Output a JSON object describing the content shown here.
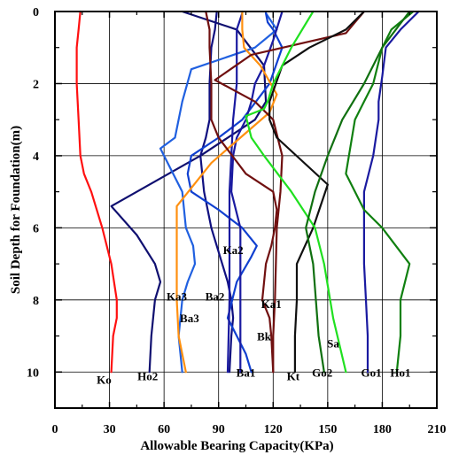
{
  "chart_data": {
    "type": "line",
    "title": "",
    "xlabel": "Allowable Bearing Capacity(KPa)",
    "ylabel": "Soil Depth for Foundation(m)",
    "xlim": [
      0,
      210
    ],
    "ylim": [
      0,
      11
    ],
    "y_inverted": true,
    "x_ticks": [
      "0",
      "30",
      "60",
      "90",
      "120",
      "150",
      "180",
      "210"
    ],
    "y_ticks": [
      "0",
      "2",
      "4",
      "6",
      "8",
      "10"
    ],
    "grid": true,
    "legend": "none",
    "series": [
      {
        "name": "Ko",
        "color": "#ff1010",
        "label_pos": [
          27,
          10.2
        ],
        "x": [
          14,
          13,
          12,
          12,
          13,
          14,
          16,
          20,
          26,
          31,
          34,
          34,
          32,
          31
        ],
        "y": [
          0,
          0.5,
          1.0,
          2.0,
          3.0,
          4.0,
          4.5,
          5.0,
          6.0,
          7.0,
          8.0,
          8.5,
          9.0,
          10.0
        ]
      },
      {
        "name": "Ho2",
        "color": "#101070",
        "label_pos": [
          51,
          10.1
        ],
        "x": [
          70,
          100,
          115,
          116,
          110,
          80,
          31,
          45,
          55,
          58,
          55,
          53,
          52
        ],
        "y": [
          0,
          0.5,
          1.5,
          2.5,
          3.0,
          4.0,
          5.4,
          6.2,
          7.0,
          7.5,
          8.0,
          9.0,
          10.0
        ]
      },
      {
        "name": "Ka3",
        "color": "#101080",
        "label_pos": [
          67,
          7.9
        ],
        "x": [
          89,
          88,
          86,
          85,
          85,
          83,
          80,
          82,
          86,
          92,
          95,
          97,
          98,
          97,
          96
        ],
        "y": [
          0,
          0.5,
          1.0,
          2.0,
          3.0,
          3.5,
          4.0,
          5.0,
          6.0,
          7.0,
          7.5,
          8.0,
          8.5,
          9.0,
          10.0
        ]
      },
      {
        "name": "Ba3",
        "color": "#2060e0",
        "label_pos": [
          74,
          8.5
        ],
        "x": [
          116,
          122,
          110,
          75,
          70,
          66,
          58,
          65,
          70,
          72,
          76,
          77,
          73,
          70,
          68,
          70
        ],
        "y": [
          0.05,
          0.5,
          1.0,
          1.6,
          2.5,
          3.5,
          3.8,
          4.5,
          5.0,
          6.0,
          6.5,
          7.0,
          7.5,
          8.0,
          9.0,
          10.0
        ]
      },
      {
        "name": "Ba2",
        "color": "#1040d0",
        "label_pos": [
          88,
          7.9
        ],
        "x": [
          116,
          117,
          120,
          125,
          118,
          103,
          90,
          75,
          73,
          75,
          90,
          103,
          111,
          108,
          100,
          95,
          105,
          108
        ],
        "y": [
          0.05,
          0.3,
          0.5,
          1.0,
          2.0,
          3.0,
          3.5,
          4.0,
          4.5,
          5.0,
          5.5,
          6.0,
          6.5,
          6.8,
          7.5,
          8.5,
          9.5,
          10.0
        ]
      },
      {
        "name": "Ka2",
        "color": "#1a1aa0",
        "label_pos": [
          98,
          6.6
        ],
        "x": [
          125,
          120,
          115,
          110,
          108,
          105,
          100,
          98,
          97,
          102,
          102,
          102,
          102
        ],
        "y": [
          0,
          0.8,
          1.5,
          2.0,
          2.5,
          3.0,
          3.5,
          4.0,
          5.0,
          6.0,
          7.0,
          8.0,
          10.0
        ]
      },
      {
        "name": "Ba1",
        "color": "#1a1aa0",
        "label_pos": [
          105,
          10.0
        ],
        "x": [
          103,
          100,
          100,
          100,
          98,
          97,
          96,
          96,
          95
        ],
        "y": [
          0.05,
          0.5,
          1.0,
          2.0,
          3.0,
          4.0,
          5.0,
          8.0,
          10.0
        ]
      },
      {
        "name": "Bk",
        "color": "#ff9010",
        "label_pos": [
          115,
          9.0
        ],
        "x": [
          103,
          103,
          104,
          113,
          122,
          118,
          102,
          86,
          67,
          67,
          67,
          67,
          68,
          72
        ],
        "y": [
          0,
          0.5,
          1.0,
          1.5,
          2.3,
          2.8,
          3.5,
          4.2,
          5.4,
          6.0,
          7.0,
          8.0,
          9.0,
          10.0
        ]
      },
      {
        "name": "Ka1",
        "color": "#701010",
        "label_pos": [
          119,
          8.1
        ],
        "x": [
          83,
          85,
          85,
          86,
          86,
          90,
          105,
          120,
          122,
          121,
          119,
          116,
          114,
          118,
          119,
          120
        ],
        "y": [
          0,
          0.5,
          1.0,
          2.0,
          3.0,
          3.5,
          4.5,
          5.0,
          5.5,
          6.0,
          6.5,
          7.0,
          8.0,
          8.5,
          9.0,
          10.0
        ]
      },
      {
        "name": "Kt",
        "color": "#701010",
        "label_pos": [
          131,
          10.1
        ],
        "x": [
          170,
          165,
          160,
          108,
          88,
          110,
          120,
          125,
          124,
          122,
          121,
          120,
          120
        ],
        "y": [
          0,
          0.3,
          0.6,
          1.2,
          1.9,
          2.5,
          3.0,
          4.0,
          5.0,
          6.0,
          8.0,
          9.0,
          10.0
        ]
      },
      {
        "name": "Sa",
        "color": "#101010",
        "label_pos": [
          153,
          9.2
        ],
        "x": [
          170,
          160,
          140,
          125,
          118,
          118,
          122,
          150,
          142,
          133,
          133,
          132,
          132
        ],
        "y": [
          0,
          0.5,
          1.0,
          1.5,
          2.5,
          3.0,
          3.5,
          4.8,
          6.0,
          7.0,
          8.0,
          9.0,
          10.0
        ]
      },
      {
        "name": "Go2",
        "color": "#20e020",
        "label_pos": [
          147,
          10.0
        ],
        "x": [
          142,
          130,
          120,
          117,
          115,
          105,
          108,
          115,
          130,
          143,
          148,
          153,
          160
        ],
        "y": [
          0,
          1.0,
          2.0,
          2.5,
          2.7,
          2.9,
          3.5,
          4.0,
          5.0,
          6.0,
          7.0,
          8.5,
          10.0
        ]
      },
      {
        "name": "Go1",
        "color": "#1a1aa0",
        "label_pos": [
          174,
          10.0
        ],
        "x": [
          200,
          190,
          182,
          180,
          178,
          178,
          175,
          170,
          170,
          170,
          171,
          172,
          172
        ],
        "y": [
          0,
          0.5,
          1.0,
          1.8,
          2.5,
          3.0,
          4.0,
          5.0,
          6.0,
          7.0,
          8.0,
          9.0,
          10.0
        ]
      },
      {
        "name": "Ho1",
        "color": "#108010",
        "label_pos": [
          190,
          10.0
        ],
        "x": [
          197,
          185,
          180,
          175,
          170,
          165,
          160,
          170,
          180,
          195,
          190,
          190,
          188
        ],
        "y": [
          0,
          0.5,
          1.0,
          2.0,
          2.5,
          3.0,
          4.5,
          5.5,
          6.0,
          7.0,
          8.0,
          9.0,
          10.0
        ]
      },
      {
        "name": "",
        "color": "#107010",
        "label_pos": null,
        "x": [
          195,
          180,
          170,
          158,
          150,
          143,
          138,
          142,
          145,
          148
        ],
        "y": [
          0,
          1.0,
          2.0,
          3.0,
          4.0,
          5.0,
          6.0,
          7.0,
          9.0,
          10.0
        ]
      }
    ]
  }
}
